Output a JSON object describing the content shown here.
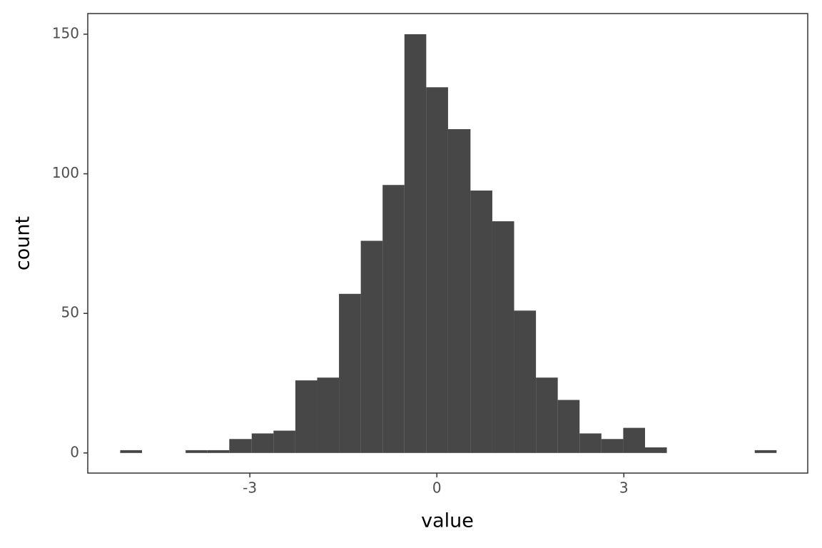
{
  "chart_data": {
    "type": "histogram",
    "xlabel": "value",
    "ylabel": "count",
    "bins": [
      -5.08,
      -4.73,
      -4.38,
      -4.03,
      -3.68,
      -3.33,
      -2.97,
      -2.62,
      -2.27,
      -1.92,
      -1.57,
      -1.22,
      -0.87,
      -0.52,
      -0.17,
      0.18,
      0.54,
      0.89,
      1.24,
      1.59,
      1.94,
      2.29,
      2.64,
      2.99,
      3.34,
      3.69,
      4.05,
      4.4,
      4.75,
      5.1,
      5.45
    ],
    "counts": [
      1,
      0,
      0,
      1,
      1,
      5,
      7,
      8,
      26,
      27,
      57,
      76,
      96,
      150,
      131,
      116,
      94,
      83,
      51,
      27,
      19,
      7,
      5,
      9,
      2,
      0,
      0,
      0,
      0,
      1
    ],
    "color": "#474747",
    "xlim": [
      -5.6,
      5.95
    ],
    "xticks": [
      -3,
      0,
      3
    ],
    "ylim": [
      -7.2,
      157.4
    ],
    "yticks": [
      0,
      50,
      100,
      150
    ],
    "grid": false
  }
}
